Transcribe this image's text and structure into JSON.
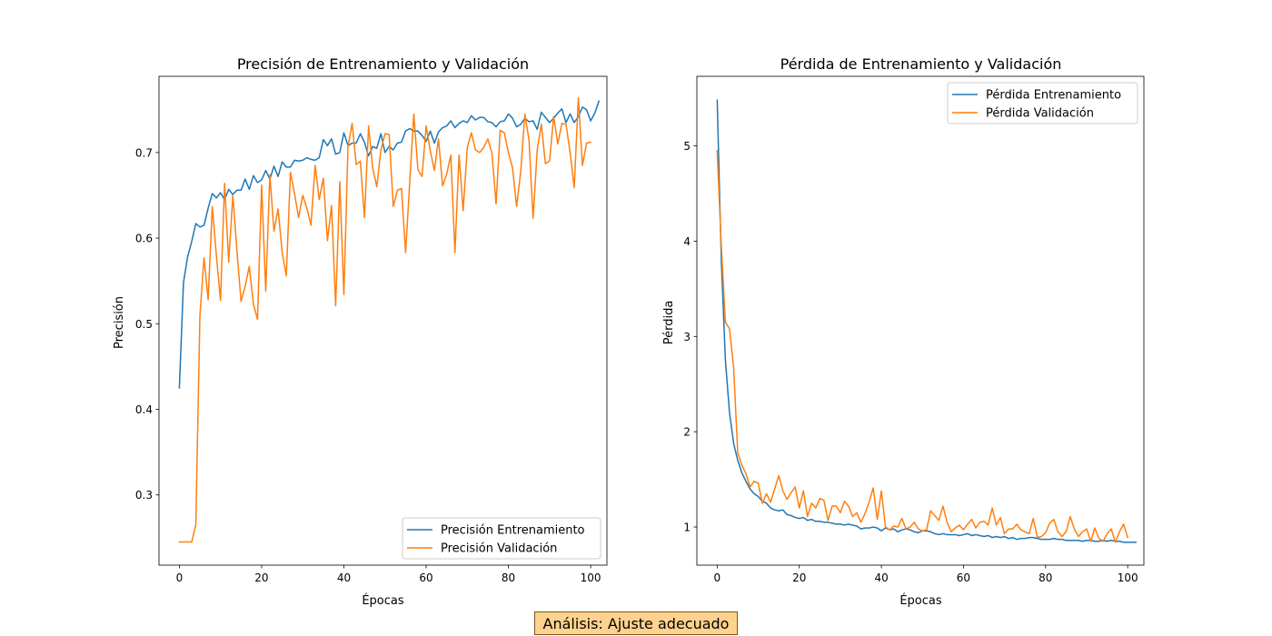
{
  "chart_data": [
    {
      "type": "line",
      "title": "Precisión de Entrenamiento y Validación",
      "xlabel": "Épocas",
      "ylabel": "Precisión",
      "xlim": [
        -4.95,
        103.95
      ],
      "ylim": [
        0.218,
        0.789
      ],
      "xticks": [
        0,
        20,
        40,
        60,
        80,
        100
      ],
      "yticks": [
        0.3,
        0.4,
        0.5,
        0.6,
        0.7
      ],
      "legend_position": "lower-right",
      "grid": false,
      "series": [
        {
          "name": "Precisión Entrenamiento",
          "color": "#1f77b4",
          "values": [
            0.425,
            0.548,
            0.578,
            0.596,
            0.617,
            0.613,
            0.615,
            0.635,
            0.652,
            0.647,
            0.653,
            0.645,
            0.657,
            0.651,
            0.656,
            0.656,
            0.669,
            0.657,
            0.673,
            0.665,
            0.668,
            0.679,
            0.669,
            0.684,
            0.672,
            0.689,
            0.683,
            0.683,
            0.691,
            0.69,
            0.691,
            0.694,
            0.692,
            0.691,
            0.694,
            0.715,
            0.708,
            0.716,
            0.698,
            0.7,
            0.723,
            0.708,
            0.711,
            0.711,
            0.722,
            0.712,
            0.696,
            0.707,
            0.705,
            0.722,
            0.7,
            0.707,
            0.703,
            0.711,
            0.712,
            0.725,
            0.728,
            0.725,
            0.725,
            0.72,
            0.713,
            0.725,
            0.711,
            0.724,
            0.729,
            0.731,
            0.737,
            0.729,
            0.734,
            0.737,
            0.735,
            0.743,
            0.738,
            0.741,
            0.741,
            0.736,
            0.735,
            0.73,
            0.736,
            0.737,
            0.745,
            0.74,
            0.73,
            0.733,
            0.74,
            0.736,
            0.737,
            0.727,
            0.747,
            0.741,
            0.735,
            0.74,
            0.746,
            0.751,
            0.735,
            0.745,
            0.735,
            0.742,
            0.753,
            0.75,
            0.737,
            0.746,
            0.76
          ]
        },
        {
          "name": "Precisión Validación",
          "color": "#ff7f0e",
          "values": [
            0.245,
            0.245,
            0.245,
            0.245,
            0.265,
            0.51,
            0.577,
            0.528,
            0.637,
            0.58,
            0.527,
            0.664,
            0.572,
            0.65,
            0.585,
            0.526,
            0.544,
            0.567,
            0.523,
            0.505,
            0.662,
            0.538,
            0.674,
            0.608,
            0.634,
            0.583,
            0.556,
            0.677,
            0.652,
            0.624,
            0.65,
            0.635,
            0.615,
            0.685,
            0.645,
            0.67,
            0.597,
            0.638,
            0.521,
            0.666,
            0.534,
            0.707,
            0.734,
            0.686,
            0.69,
            0.624,
            0.731,
            0.682,
            0.66,
            0.703,
            0.722,
            0.721,
            0.637,
            0.656,
            0.658,
            0.583,
            0.665,
            0.745,
            0.68,
            0.672,
            0.731,
            0.702,
            0.679,
            0.716,
            0.661,
            0.675,
            0.697,
            0.583,
            0.697,
            0.632,
            0.706,
            0.723,
            0.703,
            0.7,
            0.706,
            0.716,
            0.699,
            0.64,
            0.726,
            0.723,
            0.7,
            0.682,
            0.637,
            0.678,
            0.745,
            0.715,
            0.623,
            0.703,
            0.733,
            0.687,
            0.69,
            0.742,
            0.71,
            0.734,
            0.733,
            0.7,
            0.659,
            0.764,
            0.685,
            0.711,
            0.712
          ]
        }
      ]
    },
    {
      "type": "line",
      "title": "Pérdida de Entrenamiento y Validación",
      "xlabel": "Épocas",
      "ylabel": "Pérdida",
      "xlim": [
        -4.95,
        103.95
      ],
      "ylim": [
        0.6,
        5.73
      ],
      "xticks": [
        0,
        20,
        40,
        60,
        80,
        100
      ],
      "yticks": [
        1,
        2,
        3,
        4,
        5
      ],
      "legend_position": "upper-right",
      "grid": false,
      "series": [
        {
          "name": "Pérdida Entrenamiento",
          "color": "#1f77b4",
          "values": [
            5.48,
            3.8,
            2.75,
            2.2,
            1.88,
            1.7,
            1.57,
            1.48,
            1.4,
            1.35,
            1.32,
            1.27,
            1.25,
            1.2,
            1.18,
            1.17,
            1.18,
            1.13,
            1.12,
            1.1,
            1.09,
            1.1,
            1.07,
            1.08,
            1.06,
            1.06,
            1.05,
            1.05,
            1.04,
            1.03,
            1.03,
            1.02,
            1.03,
            1.02,
            1.01,
            0.98,
            0.99,
            0.99,
            1.0,
            0.99,
            0.96,
            0.99,
            0.97,
            0.98,
            0.95,
            0.97,
            0.98,
            0.97,
            0.95,
            0.94,
            0.96,
            0.96,
            0.95,
            0.93,
            0.92,
            0.93,
            0.92,
            0.92,
            0.92,
            0.91,
            0.92,
            0.93,
            0.91,
            0.92,
            0.91,
            0.9,
            0.91,
            0.89,
            0.9,
            0.89,
            0.9,
            0.88,
            0.89,
            0.87,
            0.88,
            0.88,
            0.89,
            0.89,
            0.88,
            0.87,
            0.87,
            0.87,
            0.88,
            0.87,
            0.87,
            0.86,
            0.86,
            0.86,
            0.86,
            0.85,
            0.86,
            0.86,
            0.85,
            0.85,
            0.86,
            0.85,
            0.86,
            0.85,
            0.85,
            0.84,
            0.84,
            0.84,
            0.84
          ]
        },
        {
          "name": "Pérdida Validación",
          "color": "#ff7f0e",
          "values": [
            4.95,
            3.95,
            3.15,
            3.08,
            2.68,
            1.78,
            1.65,
            1.56,
            1.42,
            1.48,
            1.46,
            1.25,
            1.35,
            1.26,
            1.4,
            1.54,
            1.38,
            1.29,
            1.36,
            1.42,
            1.2,
            1.38,
            1.11,
            1.25,
            1.2,
            1.3,
            1.28,
            1.07,
            1.22,
            1.22,
            1.15,
            1.27,
            1.22,
            1.11,
            1.15,
            1.05,
            1.14,
            1.26,
            1.41,
            1.08,
            1.38,
            1.0,
            0.97,
            1.01,
            1.0,
            1.09,
            0.98,
            1.0,
            1.05,
            0.98,
            0.96,
            0.97,
            1.17,
            1.12,
            1.07,
            1.22,
            1.05,
            0.95,
            0.99,
            1.02,
            0.97,
            1.03,
            1.08,
            0.99,
            1.05,
            1.06,
            1.02,
            1.2,
            1.02,
            1.1,
            0.93,
            0.98,
            0.98,
            1.03,
            0.97,
            0.95,
            0.93,
            1.09,
            0.89,
            0.9,
            0.94,
            1.04,
            1.08,
            0.95,
            0.9,
            0.95,
            1.11,
            0.98,
            0.9,
            0.95,
            0.98,
            0.85,
            0.99,
            0.88,
            0.85,
            0.93,
            0.98,
            0.84,
            0.95,
            1.03,
            0.89
          ]
        }
      ]
    }
  ],
  "analysis": {
    "label": "Análisis: Ajuste adecuado",
    "background": "#fdd28e"
  }
}
